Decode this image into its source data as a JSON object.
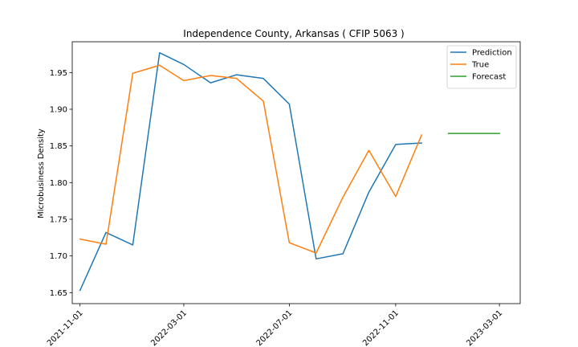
{
  "chart_data": {
    "type": "line",
    "title": "Independence County, Arkansas ( CFIP 5063 )",
    "xlabel": "",
    "ylabel": "Microbusiness Density",
    "xlim": [
      "2021-10-23",
      "2023-03-25"
    ],
    "ylim": [
      1.635,
      1.992
    ],
    "x_ticks": [
      "2021-11-01",
      "2022-03-01",
      "2022-07-01",
      "2022-11-01",
      "2023-03-01"
    ],
    "y_ticks": [
      1.65,
      1.7,
      1.75,
      1.8,
      1.85,
      1.9,
      1.95
    ],
    "y_tick_labels": [
      "1.65",
      "1.70",
      "1.75",
      "1.80",
      "1.85",
      "1.90",
      "1.95"
    ],
    "grid": false,
    "legend_position": "top-right",
    "series": [
      {
        "name": "Prediction",
        "color": "#1f77b4",
        "x": [
          "2021-11-01",
          "2021-12-01",
          "2022-01-01",
          "2022-02-01",
          "2022-03-01",
          "2022-04-01",
          "2022-05-01",
          "2022-06-01",
          "2022-07-01",
          "2022-08-01",
          "2022-09-01",
          "2022-10-01",
          "2022-11-01",
          "2022-12-01"
        ],
        "y": [
          1.653,
          1.732,
          1.715,
          1.977,
          1.961,
          1.936,
          1.947,
          1.942,
          1.907,
          1.696,
          1.703,
          1.787,
          1.852,
          1.854
        ]
      },
      {
        "name": "True",
        "color": "#ff7f0e",
        "x": [
          "2021-11-01",
          "2021-12-01",
          "2022-01-01",
          "2022-02-01",
          "2022-03-01",
          "2022-04-01",
          "2022-05-01",
          "2022-06-01",
          "2022-07-01",
          "2022-08-01",
          "2022-09-01",
          "2022-10-01",
          "2022-11-01",
          "2022-12-01"
        ],
        "y": [
          1.723,
          1.716,
          1.949,
          1.96,
          1.939,
          1.946,
          1.942,
          1.911,
          1.718,
          1.704,
          1.78,
          1.844,
          1.781,
          1.865
        ]
      },
      {
        "name": "Forecast",
        "color": "#2ca02c",
        "x": [
          "2023-01-01",
          "2023-02-01",
          "2023-03-01"
        ],
        "y": [
          1.867,
          1.867,
          1.867
        ]
      }
    ]
  }
}
